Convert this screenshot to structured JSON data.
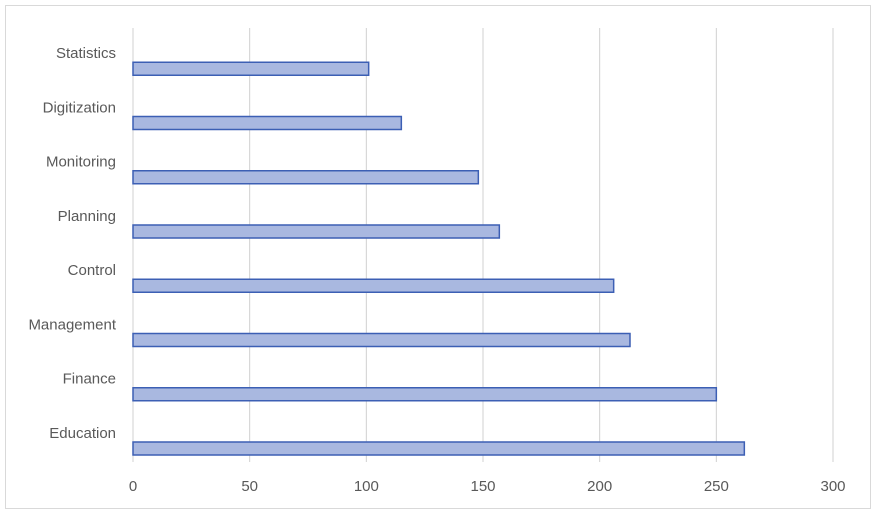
{
  "chart_data": {
    "type": "bar",
    "orientation": "horizontal",
    "categories": [
      "Statistics",
      "Digitization",
      "Monitoring",
      "Planning",
      "Control",
      "Management",
      "Finance",
      "Education"
    ],
    "values": [
      101,
      115,
      148,
      157,
      206,
      213,
      250,
      262
    ],
    "color": "#a9b8e0",
    "edge_color": "#3c5fb4",
    "xlim": [
      0,
      300
    ],
    "xticks": [
      0,
      50,
      100,
      150,
      200,
      250,
      300
    ],
    "grid": true
  }
}
